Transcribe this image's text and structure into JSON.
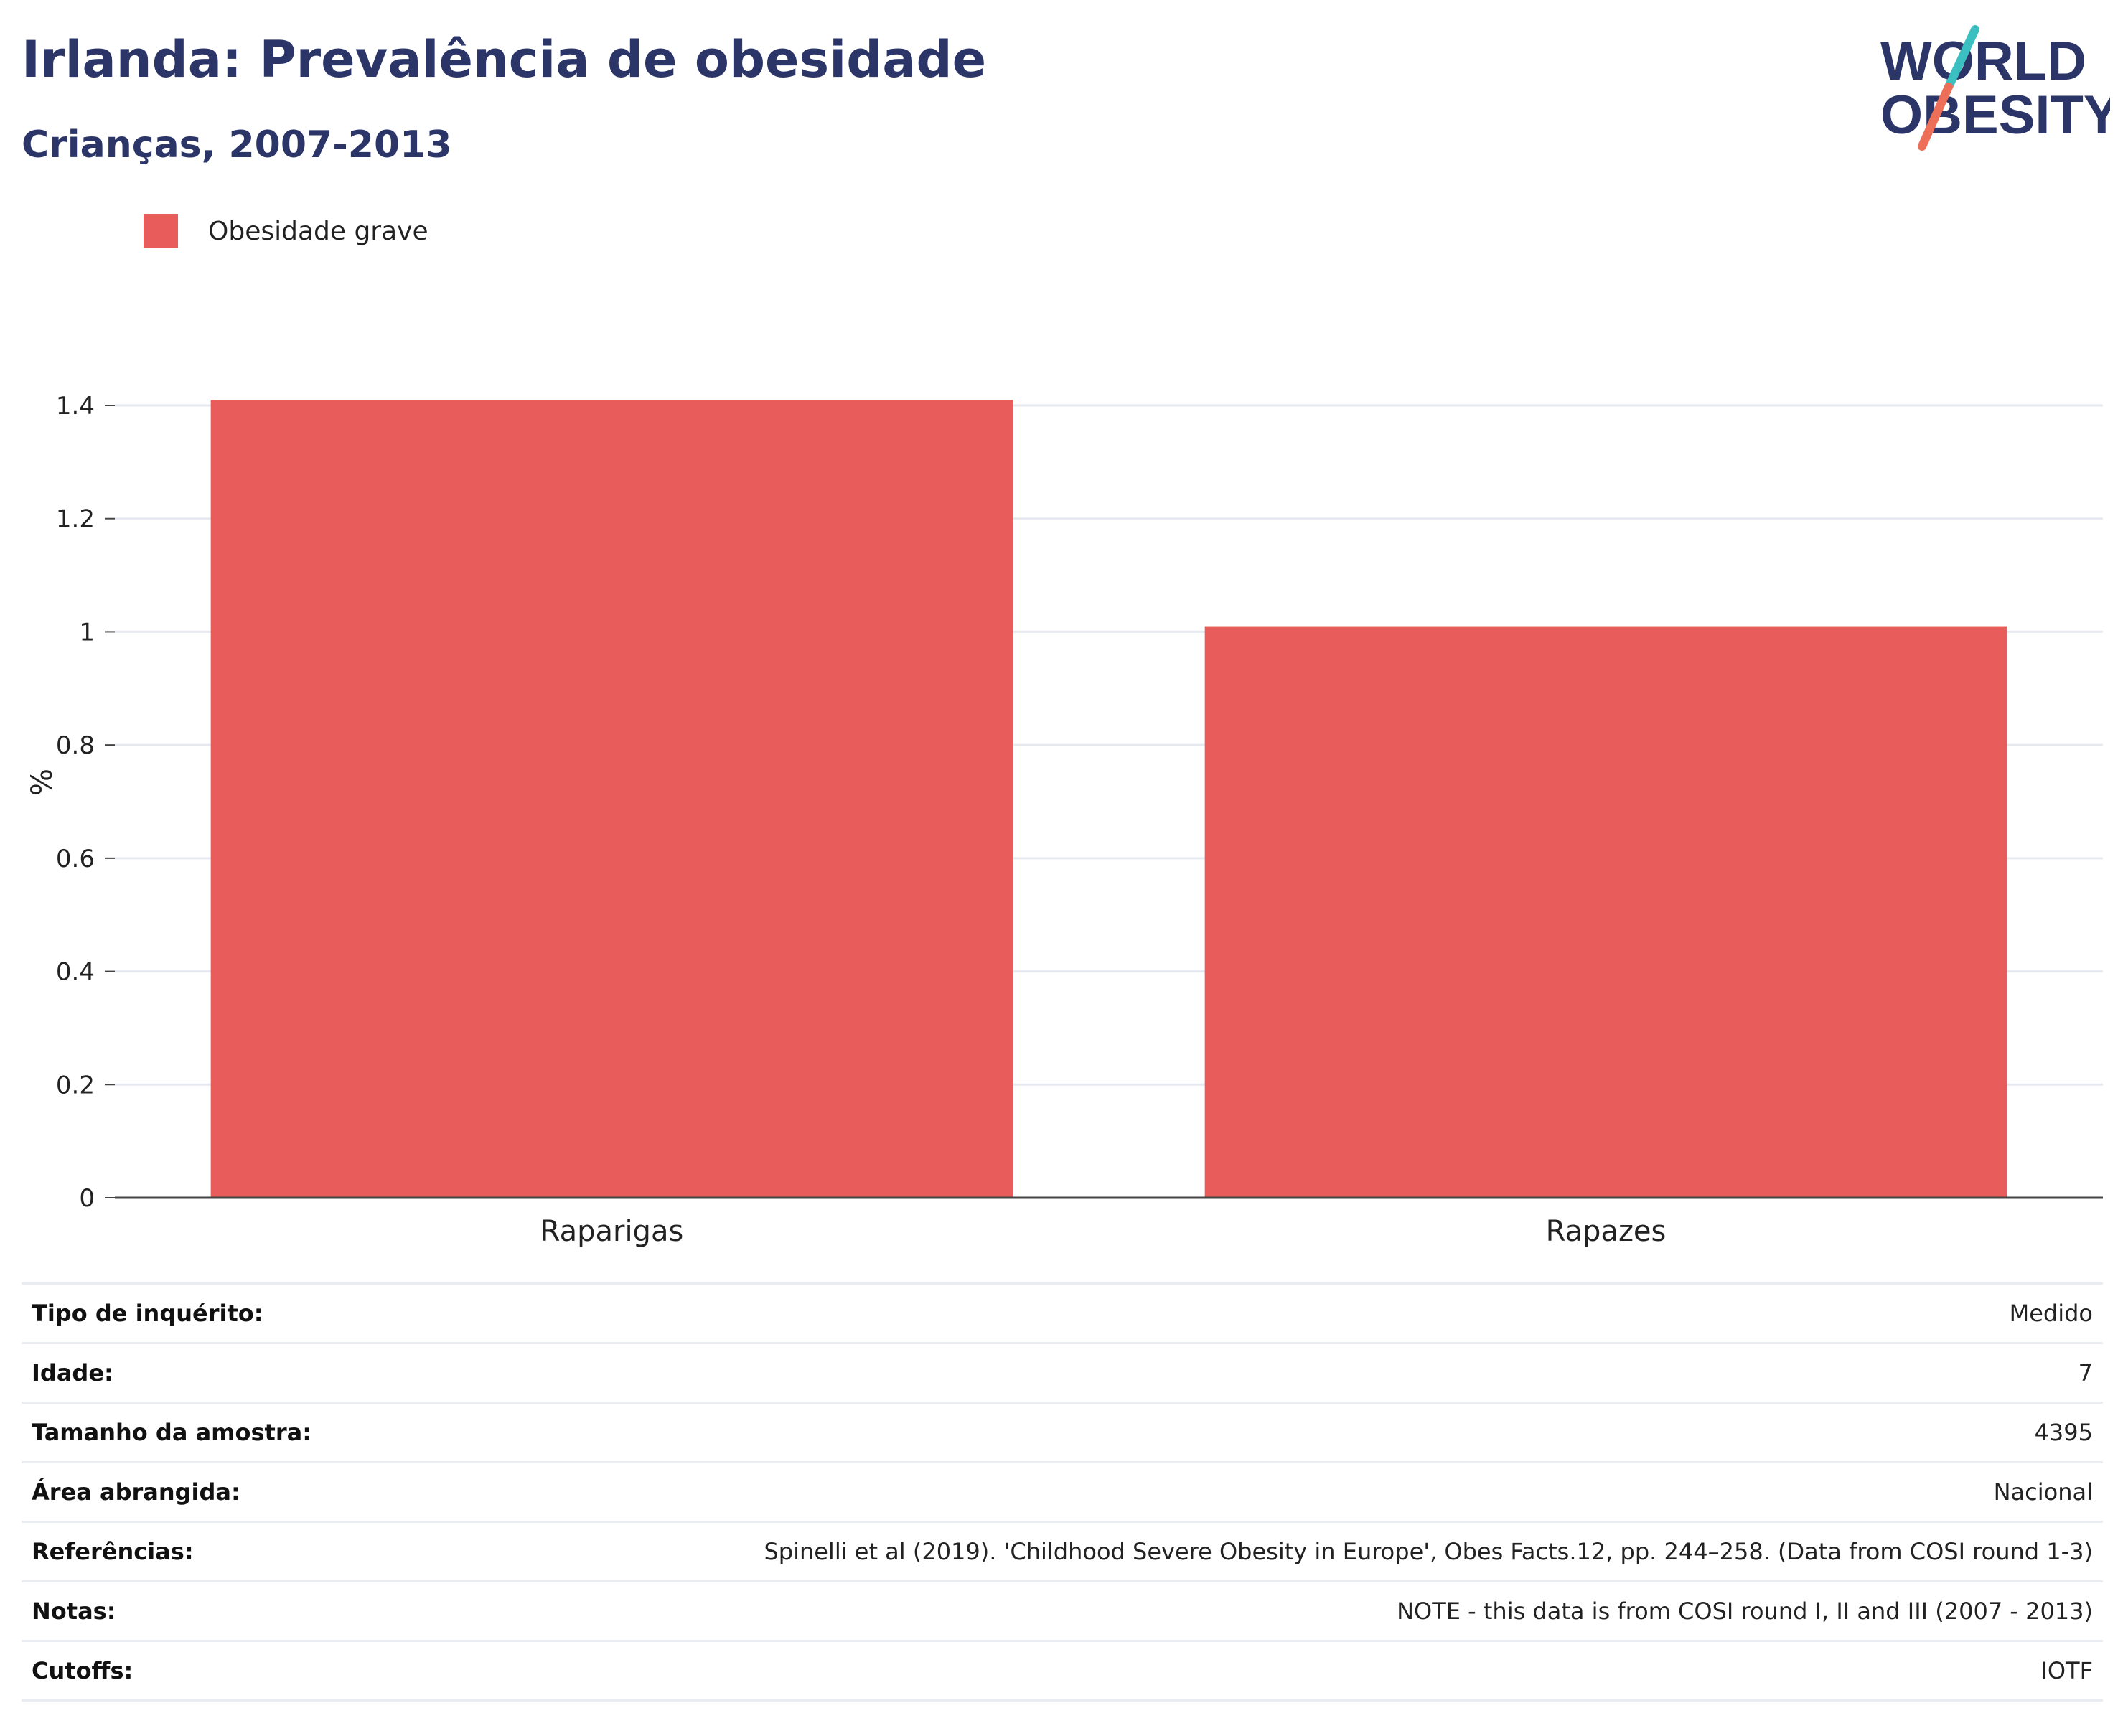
{
  "header": {
    "title": "Irlanda: Prevalência de obesidade",
    "subtitle": "Crianças, 2007-2013",
    "logo_line1": "WORLD",
    "logo_line2": "OBESITY"
  },
  "legend": {
    "label": "Obesidade grave",
    "color": "#e85c5c"
  },
  "chart_data": {
    "type": "bar",
    "categories": [
      "Raparigas",
      "Rapazes"
    ],
    "series": [
      {
        "name": "Obesidade grave",
        "values": [
          1.41,
          1.01
        ],
        "color": "#e85c5c"
      }
    ],
    "ylabel": "%",
    "ylim": [
      0,
      1.4
    ],
    "yticks": [
      "0",
      "0.2",
      "0.4",
      "0.6",
      "0.8",
      "1",
      "1.2",
      "1.4"
    ],
    "grid": true
  },
  "info_table": {
    "rows": [
      {
        "label": "Tipo de inquérito:",
        "value": "Medido"
      },
      {
        "label": "Idade:",
        "value": "7"
      },
      {
        "label": "Tamanho da amostra:",
        "value": "4395"
      },
      {
        "label": "Área abrangida:",
        "value": "Nacional"
      },
      {
        "label": "Referências:",
        "value": "Spinelli et al (2019). 'Childhood Severe Obesity in Europe', Obes Facts.12, pp. 244–258. (Data from COSI round 1-3)"
      },
      {
        "label": "Notas:",
        "value": "NOTE - this data is from COSI round I, II and III (2007 - 2013)"
      },
      {
        "label": "Cutoffs:",
        "value": "IOTF"
      }
    ]
  }
}
